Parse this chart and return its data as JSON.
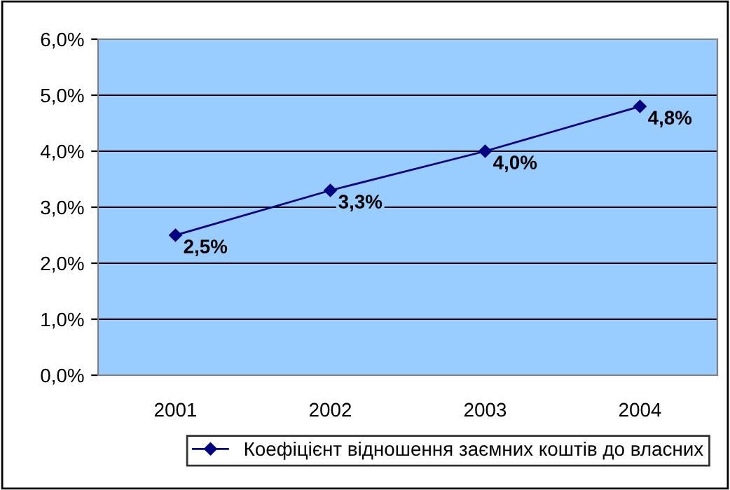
{
  "chart_data": {
    "type": "line",
    "categories": [
      "2001",
      "2002",
      "2003",
      "2004"
    ],
    "series": [
      {
        "name": "Коефіцієнт відношення заємних коштів до власних",
        "color": "#000080",
        "values": [
          2.5,
          3.3,
          4.0,
          4.8
        ],
        "value_labels": [
          "2,5%",
          "3,3%",
          "4,0%",
          "4,8%"
        ]
      }
    ],
    "ylim": [
      0,
      6
    ],
    "yticks": [
      {
        "value": 0,
        "label": "0,0%"
      },
      {
        "value": 1,
        "label": "1,0%"
      },
      {
        "value": 2,
        "label": "2,0%"
      },
      {
        "value": 3,
        "label": "3,0%"
      },
      {
        "value": 4,
        "label": "4,0%"
      },
      {
        "value": 5,
        "label": "5,0%"
      },
      {
        "value": 6,
        "label": "6,0%"
      }
    ],
    "grid": "y",
    "legend": "bottom",
    "marker": "diamond",
    "line_style": "solid"
  }
}
